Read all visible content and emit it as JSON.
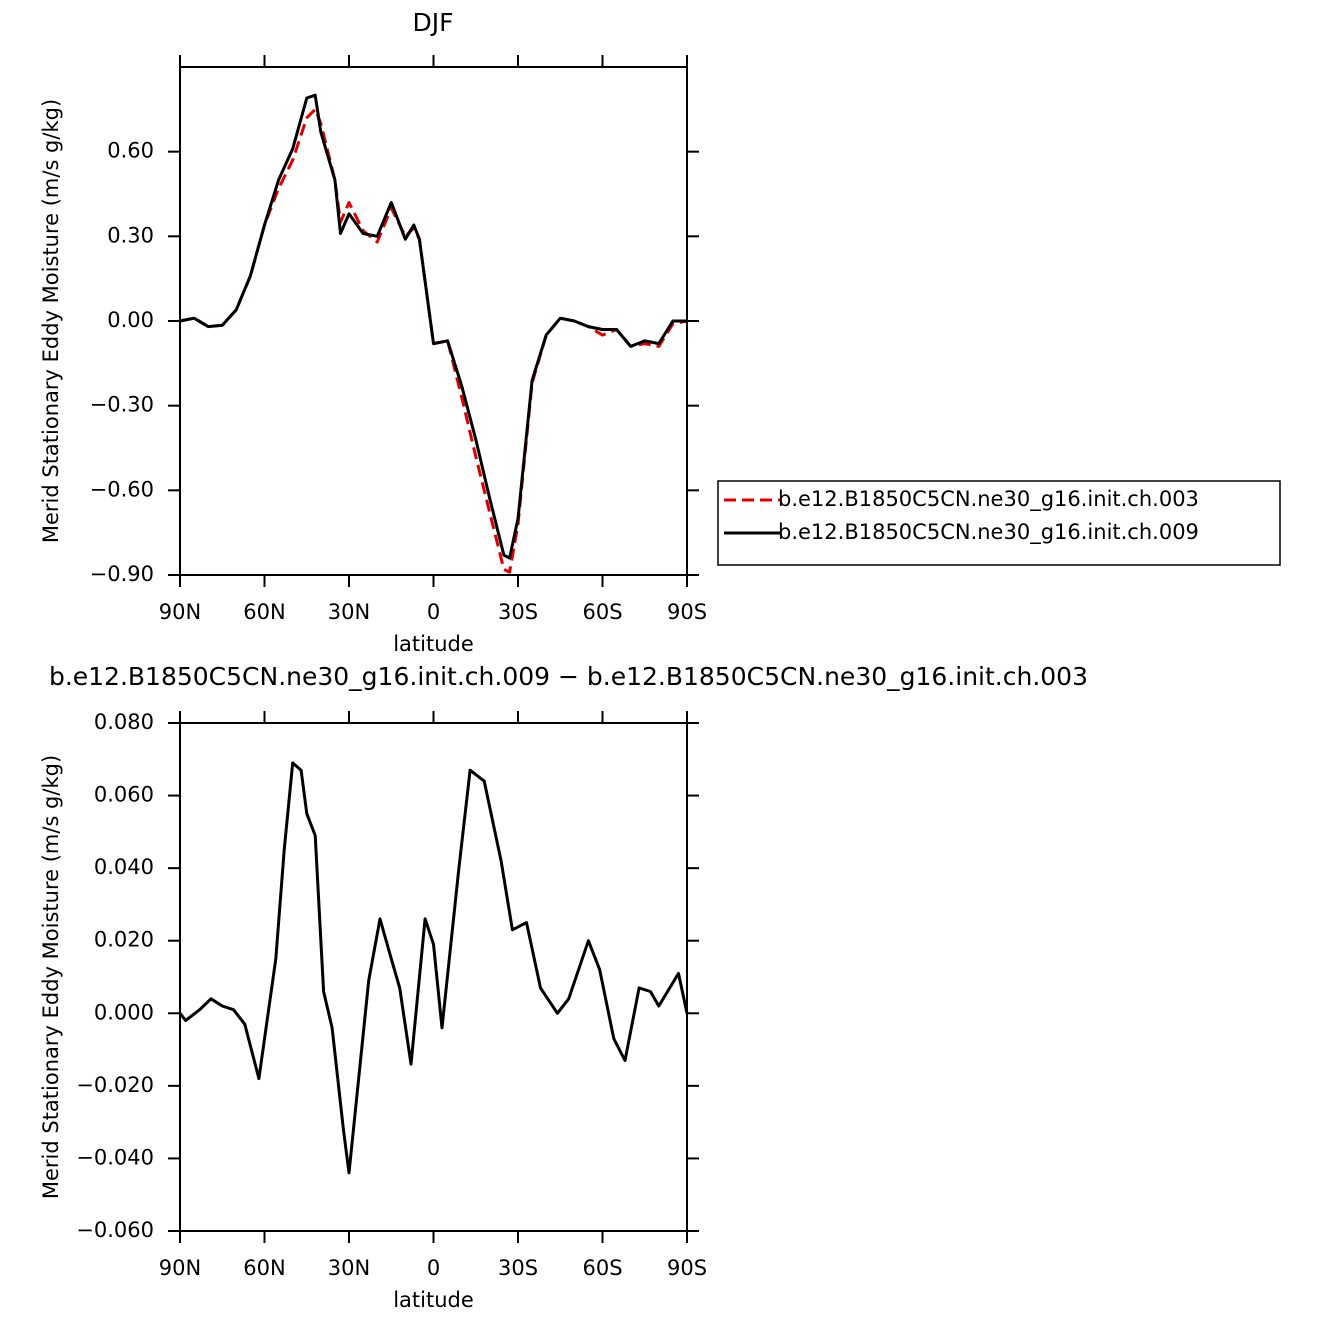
{
  "chart_data": [
    {
      "type": "line",
      "title": "DJF",
      "xlabel": "latitude",
      "ylabel": "Merid Stationary Eddy Moisture (m/s g/kg)",
      "x": [
        90,
        85,
        80,
        75,
        70,
        65,
        60,
        55,
        50,
        45,
        42,
        40,
        35,
        33,
        30,
        25,
        20,
        15,
        10,
        7,
        5,
        0,
        -5,
        -10,
        -15,
        -20,
        -25,
        -27,
        -30,
        -35,
        -40,
        -45,
        -50,
        -55,
        -60,
        -65,
        -70,
        -75,
        -80,
        -85,
        -90
      ],
      "series": [
        {
          "name": "b.e12.B1850C5CN.ne30_g16.init.ch.003",
          "color": "#e00000",
          "dash": "dashed",
          "values": [
            0,
            0.01,
            -0.02,
            -0.015,
            0.04,
            0.16,
            0.34,
            0.47,
            0.57,
            0.72,
            0.75,
            0.7,
            0.5,
            0.35,
            0.42,
            0.32,
            0.28,
            0.4,
            0.3,
            0.33,
            0.29,
            -0.08,
            -0.07,
            -0.27,
            -0.48,
            -0.68,
            -0.88,
            -0.89,
            -0.72,
            -0.22,
            -0.05,
            0.01,
            0,
            -0.02,
            -0.05,
            -0.03,
            -0.09,
            -0.08,
            -0.09,
            -0.01,
            0
          ]
        },
        {
          "name": "b.e12.B1850C5CN.ne30_g16.init.ch.009",
          "color": "#000000",
          "dash": "solid",
          "values": [
            0,
            0.01,
            -0.02,
            -0.015,
            0.04,
            0.16,
            0.34,
            0.5,
            0.61,
            0.79,
            0.8,
            0.67,
            0.5,
            0.31,
            0.38,
            0.31,
            0.3,
            0.42,
            0.29,
            0.34,
            0.29,
            -0.08,
            -0.07,
            -0.23,
            -0.42,
            -0.63,
            -0.83,
            -0.84,
            -0.7,
            -0.21,
            -0.05,
            0.01,
            0,
            -0.02,
            -0.03,
            -0.03,
            -0.09,
            -0.07,
            -0.08,
            0,
            0
          ]
        }
      ],
      "xlim": [
        90,
        -90
      ],
      "xticks": [
        {
          "value": 90,
          "label": "90N"
        },
        {
          "value": 60,
          "label": "60N"
        },
        {
          "value": 30,
          "label": "30N"
        },
        0,
        {
          "value": -30,
          "label": "30S"
        },
        {
          "value": -60,
          "label": "60S"
        },
        {
          "value": -90,
          "label": "90S"
        }
      ],
      "ylim": [
        -0.9,
        0.9
      ],
      "yticks": [
        {
          "value": -0.9,
          "label": "−0.90"
        },
        {
          "value": -0.6,
          "label": "−0.60"
        },
        {
          "value": -0.3,
          "label": "−0.30"
        },
        {
          "value": 0,
          "label": "0.00"
        },
        {
          "value": 0.3,
          "label": "0.30"
        },
        {
          "value": 0.6,
          "label": "0.60"
        }
      ],
      "legend": "right"
    },
    {
      "type": "line",
      "title": "b.e12.B1850C5CN.ne30_g16.init.ch.009 − b.e12.B1850C5CN.ne30_g16.init.ch.003",
      "xlabel": "latitude",
      "ylabel": "Merid Stationary Eddy Moisture (m/s g/kg)",
      "x": [
        90,
        88,
        83,
        79,
        75,
        71,
        67,
        62,
        56,
        53,
        50,
        47,
        45,
        42,
        39,
        36,
        32,
        30,
        23,
        19,
        15,
        12,
        8,
        3,
        0,
        -3,
        -9,
        -13,
        -18,
        -24,
        -28,
        -33,
        -38,
        -44,
        -48,
        -55,
        -59,
        -64,
        -68,
        -73,
        -77,
        -80,
        -87,
        -90
      ],
      "series": [
        {
          "name": null,
          "color": "#000000",
          "dash": "solid",
          "values": [
            0,
            -0.002,
            0.001,
            0.004,
            0.002,
            0.001,
            -0.003,
            -0.018,
            0.015,
            0.045,
            0.069,
            0.067,
            0.055,
            0.049,
            0.006,
            -0.004,
            -0.032,
            -0.044,
            0.009,
            0.026,
            0.015,
            0.007,
            -0.014,
            0.026,
            0.019,
            -0.004,
            0.04,
            0.067,
            0.064,
            0.042,
            0.023,
            0.025,
            0.007,
            0,
            0.004,
            0.02,
            0.012,
            -0.007,
            -0.013,
            0.007,
            0.006,
            0.002,
            0.011,
            0
          ]
        }
      ],
      "xlim": [
        90,
        -90
      ],
      "xticks": [
        {
          "value": 90,
          "label": "90N"
        },
        {
          "value": 60,
          "label": "60N"
        },
        {
          "value": 30,
          "label": "30N"
        },
        0,
        {
          "value": -30,
          "label": "30S"
        },
        {
          "value": -60,
          "label": "60S"
        },
        {
          "value": -90,
          "label": "90S"
        }
      ],
      "ylim": [
        -0.06,
        0.08
      ],
      "yticks": [
        {
          "value": -0.06,
          "label": "−0.060"
        },
        {
          "value": -0.04,
          "label": "−0.040"
        },
        {
          "value": -0.02,
          "label": "−0.020"
        },
        {
          "value": 0,
          "label": "0.000"
        },
        {
          "value": 0.02,
          "label": "0.020"
        },
        {
          "value": 0.04,
          "label": "0.040"
        },
        {
          "value": 0.06,
          "label": "0.060"
        },
        {
          "value": 0.08,
          "label": "0.080"
        }
      ]
    }
  ]
}
